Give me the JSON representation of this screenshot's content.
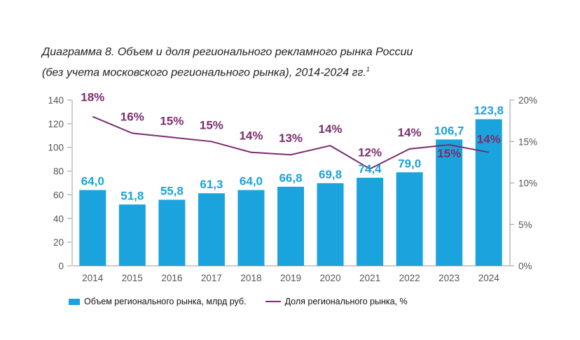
{
  "title_line1": "Диаграмма 8. Объем и доля регионального рекламного рынка России",
  "title_line2": "(без учета московского регионального рынка), 2014-2024 гг.",
  "title_footnote": "1",
  "legend": {
    "bar_label": "Объем регионального рынка, млрд руб.",
    "line_label": "Доля регионального рынка, %"
  },
  "colors": {
    "bar": "#1aa3dc",
    "line": "#7b2d6e",
    "axis_text": "#555555",
    "grid": "#dddddd"
  },
  "chart_data": {
    "type": "bar",
    "categories": [
      "2014",
      "2015",
      "2016",
      "2017",
      "2018",
      "2019",
      "2020",
      "2021",
      "2022",
      "2023",
      "2024"
    ],
    "series": [
      {
        "name": "Объем регионального рынка, млрд руб.",
        "type": "bar",
        "axis": "left",
        "values": [
          64.0,
          51.8,
          55.8,
          61.3,
          64.0,
          66.8,
          69.8,
          74.4,
          79.0,
          106.7,
          123.8
        ],
        "labels": [
          "64,0",
          "51,8",
          "55,8",
          "61,3",
          "64,0",
          "66,8",
          "69,8",
          "74,4",
          "79,0",
          "106,7",
          "123,8"
        ]
      },
      {
        "name": "Доля регионального рынка, %",
        "type": "line",
        "axis": "right",
        "values": [
          18,
          16,
          15.5,
          15,
          13.7,
          13.4,
          14.5,
          11.7,
          14.1,
          14.6,
          13.7
        ],
        "labels": [
          "18%",
          "16%",
          "15%",
          "15%",
          "14%",
          "13%",
          "14%",
          "12%",
          "14%",
          "15%",
          "14%"
        ]
      }
    ],
    "y_left": {
      "min": 0,
      "max": 140,
      "ticks": [
        "0",
        "20",
        "40",
        "60",
        "80",
        "100",
        "120",
        "140"
      ]
    },
    "y_right": {
      "min": 0,
      "max": 20,
      "ticks": [
        "0%",
        "5%",
        "10%",
        "15%",
        "20%"
      ]
    }
  }
}
